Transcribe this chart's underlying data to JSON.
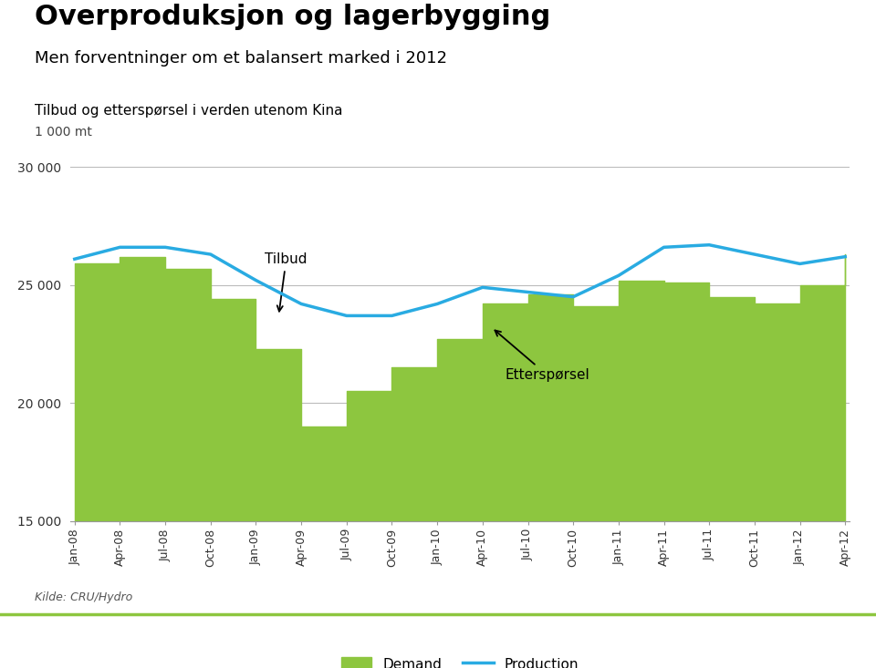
{
  "title": "Overproduksjon og lagerbygging",
  "subtitle": "Men forventninger om et balansert marked i 2012",
  "ylabel_desc": "Tilbud og etterspørsel i verden utenom Kina",
  "unit_label": "1 000 mt",
  "source": "Kilde: CRU/Hydro",
  "legend_demand": "Demand",
  "legend_production": "Production",
  "annotation_tilbud": "Tilbud",
  "annotation_etterspørsel": "Etterspørsel",
  "ylim_min": 15000,
  "ylim_max": 30000,
  "yticks": [
    15000,
    20000,
    25000,
    30000
  ],
  "ytick_labels": [
    "15 000",
    "20 000",
    "25 000",
    "30 000"
  ],
  "demand_color": "#8dc63f",
  "production_color": "#29abe2",
  "background_color": "#ffffff",
  "x_labels": [
    "Jan-08",
    "Apr-08",
    "Jul-08",
    "Oct-08",
    "Jan-09",
    "Apr-09",
    "Jul-09",
    "Oct-09",
    "Jan-10",
    "Apr-10",
    "Jul-10",
    "Oct-10",
    "Jan-11",
    "Apr-11",
    "Jul-11",
    "Oct-11",
    "Jan-12",
    "Apr-12"
  ],
  "demand_values": [
    25900,
    26200,
    25700,
    24400,
    22300,
    19000,
    20500,
    21500,
    22700,
    24200,
    24600,
    24100,
    25200,
    25100,
    24500,
    24200,
    25000,
    26300
  ],
  "production_values": [
    26100,
    26600,
    26600,
    26300,
    25200,
    24200,
    23700,
    23700,
    24200,
    24900,
    24700,
    24500,
    25400,
    26600,
    26700,
    26300,
    25900,
    26200
  ]
}
